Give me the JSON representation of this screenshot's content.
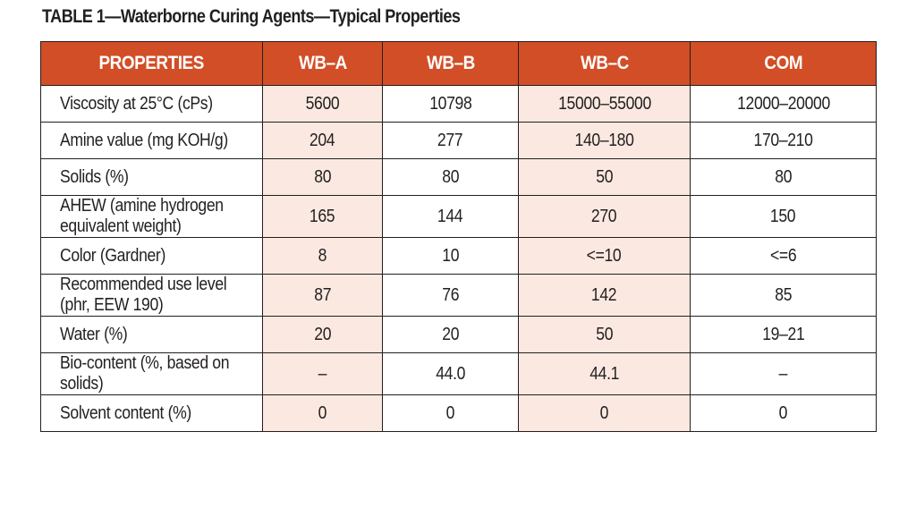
{
  "title": "TABLE 1—Waterborne Curing Agents—Typical Properties",
  "colors": {
    "header_bg": "#d24e27",
    "header_text": "#ffffff",
    "shaded_column_bg": "#fbe9e1",
    "border": "#231f20"
  },
  "table": {
    "headers": [
      "PROPERTIES",
      "WB–A",
      "WB–B",
      "WB–C",
      "COM"
    ],
    "rows": [
      {
        "property": "Viscosity at 25°C (cPs)",
        "values": [
          "5600",
          "10798",
          "15000–55000",
          "12000–20000"
        ]
      },
      {
        "property": "Amine value (mg KOH/g)",
        "values": [
          "204",
          "277",
          "140–180",
          "170–210"
        ]
      },
      {
        "property": "Solids (%)",
        "values": [
          "80",
          "80",
          "50",
          "80"
        ]
      },
      {
        "property": "AHEW (amine hydrogen equivalent weight)",
        "values": [
          "165",
          "144",
          "270",
          "150"
        ]
      },
      {
        "property": "Color (Gardner)",
        "values": [
          "8",
          "10",
          "<=10",
          "<=6"
        ]
      },
      {
        "property": "Recommended use level (phr, EEW 190)",
        "values": [
          "87",
          "76",
          "142",
          "85"
        ]
      },
      {
        "property": "Water (%)",
        "values": [
          "20",
          "20",
          "50",
          "19–21"
        ]
      },
      {
        "property": "Bio-content (%, based on solids)",
        "values": [
          "–",
          "44.0",
          "44.1",
          "–"
        ]
      },
      {
        "property": "Solvent content (%)",
        "values": [
          "0",
          "0",
          "0",
          "0"
        ]
      }
    ]
  }
}
